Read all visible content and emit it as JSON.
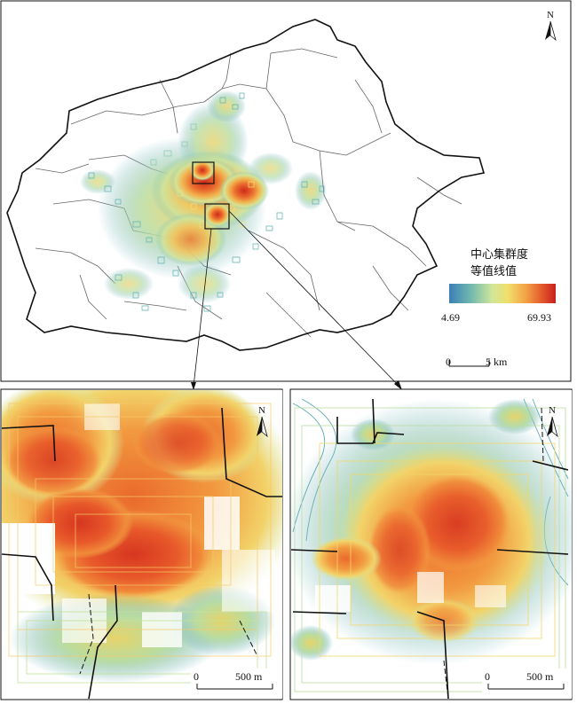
{
  "legend": {
    "title_line1": "中心集群度",
    "title_line2": "等值线值",
    "min_label": "4.69",
    "max_label": "69.93",
    "min_value": 4.69,
    "max_value": 69.93,
    "color_stops": [
      "#3b7fb6",
      "#5fb0b0",
      "#c9e49a",
      "#f1df6a",
      "#f3a245",
      "#e2552a",
      "#c8201f"
    ]
  },
  "north_arrow": {
    "label": "N"
  },
  "scalebars": {
    "main": {
      "zero": "0",
      "end": "5 km"
    },
    "inset_left": {
      "zero": "0",
      "end": "500 m"
    },
    "inset_right": {
      "zero": "0",
      "end": "500 m"
    }
  },
  "colors": {
    "boundary_outer": "#111111",
    "boundary_inner": "#555555",
    "hot": "#d2391f",
    "warm": "#f08a3a",
    "mild": "#f2d96a",
    "cool": "#8ac9b0",
    "cold": "#3f88b3"
  }
}
